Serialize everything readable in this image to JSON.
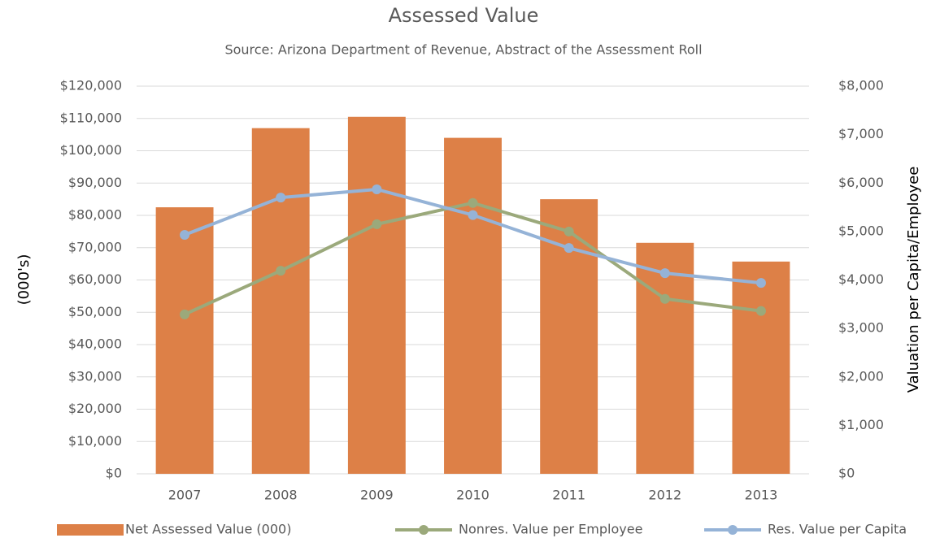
{
  "chart_data": {
    "type": "bar_line",
    "title": "Assessed Value",
    "subtitle": "Source: Arizona Department of Revenue, Abstract of the Assessment Roll",
    "y_label": "(000's)",
    "y2_label": "Valuation per Capita/Employee",
    "categories": [
      "2007",
      "2008",
      "2009",
      "2010",
      "2011",
      "2012",
      "2013"
    ],
    "series": [
      {
        "name": "Net Assessed Value (000)",
        "type": "bar",
        "color": "#dd8047",
        "axis": "y",
        "values": [
          82500,
          107000,
          110500,
          104000,
          85000,
          71500,
          65700
        ]
      },
      {
        "name": "Nonres. Value per Employee",
        "type": "line",
        "color": "#9ba97b",
        "axis": "y2",
        "values": [
          3290,
          4190,
          5150,
          5590,
          5000,
          3610,
          3360
        ]
      },
      {
        "name": "Res. Value per Capita",
        "type": "line",
        "color": "#95b3d7",
        "axis": "y2",
        "values": [
          4930,
          5700,
          5870,
          5340,
          4660,
          4140,
          3940
        ]
      }
    ],
    "ylim": [
      0,
      120000
    ],
    "yticks": [
      {
        "value": 0,
        "label": "$0"
      },
      {
        "value": 10000,
        "label": "$10,000"
      },
      {
        "value": 20000,
        "label": "$20,000"
      },
      {
        "value": 30000,
        "label": "$30,000"
      },
      {
        "value": 40000,
        "label": "$40,000"
      },
      {
        "value": 50000,
        "label": "$50,000"
      },
      {
        "value": 60000,
        "label": "$60,000"
      },
      {
        "value": 70000,
        "label": "$70,000"
      },
      {
        "value": 80000,
        "label": "$80,000"
      },
      {
        "value": 90000,
        "label": "$90,000"
      },
      {
        "value": 100000,
        "label": "$100,000"
      },
      {
        "value": 110000,
        "label": "$110,000"
      },
      {
        "value": 120000,
        "label": "$120,000"
      }
    ],
    "y2lim": [
      0,
      8000
    ],
    "y2ticks": [
      {
        "value": 0,
        "label": "$0"
      },
      {
        "value": 1000,
        "label": "$1,000"
      },
      {
        "value": 2000,
        "label": "$2,000"
      },
      {
        "value": 3000,
        "label": "$3,000"
      },
      {
        "value": 4000,
        "label": "$4,000"
      },
      {
        "value": 5000,
        "label": "$5,000"
      },
      {
        "value": 6000,
        "label": "$6,000"
      },
      {
        "value": 7000,
        "label": "$7,000"
      },
      {
        "value": 8000,
        "label": "$8,000"
      }
    ],
    "grid": true,
    "legend": "bottom"
  }
}
